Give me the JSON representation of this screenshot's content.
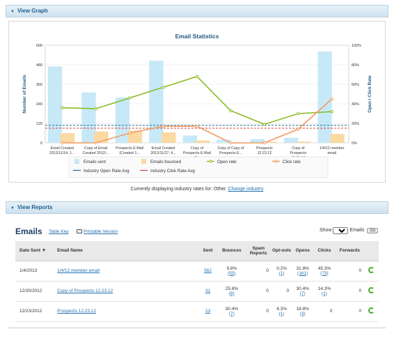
{
  "graph_panel": {
    "title": "View Graph"
  },
  "reports_panel": {
    "title": "View Reports"
  },
  "industry_note": {
    "text": "Currently displaying industry rates for: Other",
    "link": "Change industry"
  },
  "emails": {
    "title": "Emails",
    "table_key": "Table Key",
    "printable": "Printable Version",
    "show_label": "Show",
    "show_value": "10",
    "show_suffix": "Emails",
    "go_label": "Go",
    "columns": [
      "Date Sent ▼",
      "Email Name",
      "Sent",
      "Bounces",
      "Spam Reports",
      "Opt-outs",
      "Opens",
      "Clicks",
      "Forwards"
    ],
    "rows": [
      {
        "date": "1/4/2013",
        "name": "1/4/12 member email",
        "sent": "562",
        "bounces_pct": "9.8%",
        "bounces_n": "(55)",
        "spam": "0",
        "optout_pct": "0.2%",
        "optout_n": "(1)",
        "opens_pct": "31.8%",
        "opens_n": "(161)",
        "clicks_pct": "45.3%",
        "clicks_n": "(73)",
        "forwards": "0"
      },
      {
        "date": "12/30/2012",
        "name": "Copy of Prospects 12.23.12",
        "sent": "31",
        "bounces_pct": "25.8%",
        "bounces_n": "(8)",
        "spam": "0",
        "optout_pct": "",
        "optout_n": "0",
        "opens_pct": "30.4%",
        "opens_n": "(7)",
        "clicks_pct": "14.3%",
        "clicks_n": "(1)",
        "forwards": "0"
      },
      {
        "date": "12/23/2012",
        "name": "Prospects 12.23.12",
        "sent": "23",
        "bounces_pct": "30.4%",
        "bounces_n": "(7)",
        "spam": "0",
        "optout_pct": "4.3%",
        "optout_n": "(1)",
        "opens_pct": "18.8%",
        "opens_n": "(3)",
        "clicks_pct": "",
        "clicks_n": "0",
        "forwards": "0"
      }
    ]
  },
  "chart_data": {
    "type": "bar",
    "title": "Email Statistics",
    "ylabel": "Number of Emails",
    "y2label": "Open / Click Rate",
    "ylim": [
      0,
      600
    ],
    "y2lim": [
      0,
      100
    ],
    "yticks": [
      "0",
      "120",
      "240",
      "360",
      "480",
      "600"
    ],
    "y2ticks": [
      "0%",
      "20%",
      "40%",
      "60%",
      "80%",
      "100%"
    ],
    "categories": [
      [
        "Email Created",
        "2012/11/14, 1..."
      ],
      [
        "Copy of Email",
        "Created 2012/..."
      ],
      [
        "Prospects E-Mail",
        "(Created 1..."
      ],
      [
        "Email Created",
        "2012/11/27, 4..."
      ],
      [
        "Copy of",
        "Prospects E-Mail",
        "(C..."
      ],
      [
        "Copy of Copy of",
        "Prospects E..."
      ],
      [
        "Prospects",
        "12.23.12"
      ],
      [
        "Copy of",
        "Prospects",
        "12.23.12"
      ],
      [
        "1/4/12 member",
        "email"
      ]
    ],
    "series": [
      {
        "name": "Emails sent",
        "kind": "bar",
        "axis": "left",
        "color": "#c7e9f7",
        "values": [
          470,
          310,
          280,
          505,
          45,
          20,
          23,
          31,
          562
        ]
      },
      {
        "name": "Emails bounced",
        "kind": "bar",
        "axis": "left",
        "color": "#fbd9a3",
        "values": [
          60,
          70,
          75,
          65,
          15,
          3,
          7,
          8,
          55
        ]
      },
      {
        "name": "Open rate",
        "kind": "line",
        "axis": "right",
        "color": "#8dbb25",
        "values": [
          36,
          35,
          46,
          57,
          68,
          33,
          19,
          30,
          32
        ]
      },
      {
        "name": "Click rate",
        "kind": "line",
        "axis": "right",
        "color": "#f39a5f",
        "values": [
          0,
          0,
          10,
          17,
          17,
          0,
          0,
          14,
          45
        ]
      },
      {
        "name": "Industry Open Rate Avg",
        "kind": "ref",
        "axis": "right",
        "color": "#1f6f8b",
        "value": 18
      },
      {
        "name": "Industry Click Rate Avg",
        "kind": "ref",
        "axis": "right",
        "color": "#d9413c",
        "value": 15
      }
    ],
    "legend_position": "bottom",
    "grid": true
  }
}
